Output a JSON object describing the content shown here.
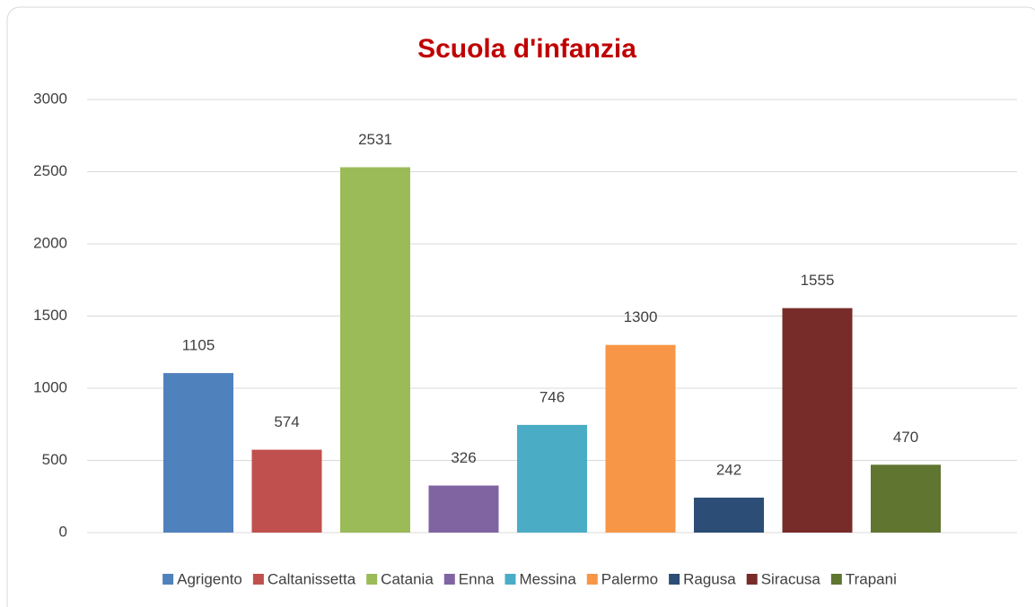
{
  "chart_data": {
    "type": "bar",
    "title": "Scuola d'infanzia",
    "categories": [
      null
    ],
    "series": [
      {
        "name": "Agrigento",
        "color": "#4f81bd",
        "values": [
          1105
        ]
      },
      {
        "name": "Caltanissetta",
        "color": "#c0504d",
        "values": [
          574
        ]
      },
      {
        "name": "Catania",
        "color": "#9bbb59",
        "values": [
          2531
        ]
      },
      {
        "name": "Enna",
        "color": "#8064a2",
        "values": [
          326
        ]
      },
      {
        "name": "Messina",
        "color": "#4bacc6",
        "values": [
          746
        ]
      },
      {
        "name": "Palermo",
        "color": "#f79646",
        "values": [
          1300
        ]
      },
      {
        "name": "Ragusa",
        "color": "#2c4d75",
        "values": [
          242
        ]
      },
      {
        "name": "Siracusa",
        "color": "#772c2a",
        "values": [
          1555
        ]
      },
      {
        "name": "Trapani",
        "color": "#5f7530",
        "values": [
          470
        ]
      }
    ],
    "ylim": [
      0,
      3000
    ],
    "yticks": [
      0,
      500,
      1000,
      1500,
      2000,
      2500,
      3000
    ],
    "grid": true,
    "legend": "bottom",
    "title_color": "#c00000"
  }
}
